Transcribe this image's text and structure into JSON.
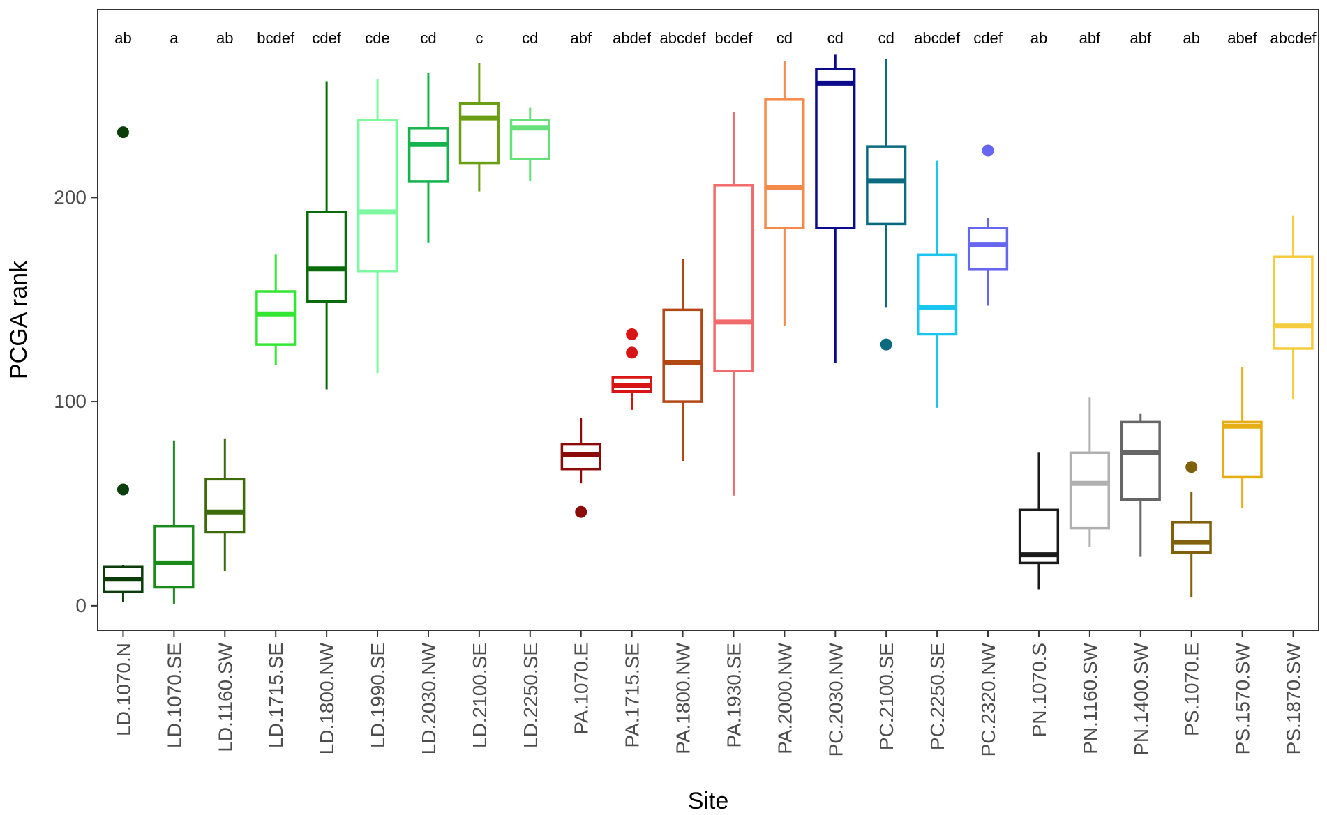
{
  "chart_data": {
    "type": "boxplot",
    "title": "",
    "xlabel": "Site",
    "ylabel": "PCGA rank",
    "ylim": [
      -12,
      292
    ],
    "yticks": [
      0,
      100,
      200
    ],
    "grid": false,
    "categories": [
      "LD.1070.N",
      "LD.1070.SE",
      "LD.1160.SW",
      "LD.1715.SE",
      "LD.1800.NW",
      "LD.1990.SE",
      "LD.2030.NW",
      "LD.2100.SE",
      "LD.2250.SE",
      "PA.1070.E",
      "PA.1715.SE",
      "PA.1800.NW",
      "PA.1930.SE",
      "PA.2000.NW",
      "PC.2030.NW",
      "PC.2100.SE",
      "PC.2250.SE",
      "PC.2320.NW",
      "PN.1070.S",
      "PN.1160.SW",
      "PN.1400.SW",
      "PS.1070.E",
      "PS.1570.SW",
      "PS.1870.SW"
    ],
    "series": [
      {
        "name": "LD.1070.N",
        "color": "#0b3d0b",
        "letters": "ab",
        "whisker_low": 2,
        "q1": 7,
        "median": 13,
        "q3": 19,
        "whisker_high": 20,
        "outliers": [
          57,
          232
        ]
      },
      {
        "name": "LD.1070.SE",
        "color": "#1a8a1a",
        "letters": "a",
        "whisker_low": 1,
        "q1": 9,
        "median": 21,
        "q3": 39,
        "whisker_high": 81,
        "outliers": []
      },
      {
        "name": "LD.1160.SW",
        "color": "#3d6b0a",
        "letters": "ab",
        "whisker_low": 17,
        "q1": 36,
        "median": 46,
        "q3": 62,
        "whisker_high": 82,
        "outliers": []
      },
      {
        "name": "LD.1715.SE",
        "color": "#33e633",
        "letters": "bcdef",
        "whisker_low": 118,
        "q1": 128,
        "median": 143,
        "q3": 154,
        "whisker_high": 172,
        "outliers": []
      },
      {
        "name": "LD.1800.NW",
        "color": "#0a6b0a",
        "letters": "cdef",
        "whisker_low": 106,
        "q1": 149,
        "median": 165,
        "q3": 193,
        "whisker_high": 257,
        "outliers": []
      },
      {
        "name": "LD.1990.SE",
        "color": "#7dfa9f",
        "letters": "cde",
        "whisker_low": 114,
        "q1": 164,
        "median": 193,
        "q3": 238,
        "whisker_high": 258,
        "outliers": []
      },
      {
        "name": "LD.2030.NW",
        "color": "#14b34d",
        "letters": "cd",
        "whisker_low": 178,
        "q1": 208,
        "median": 226,
        "q3": 234,
        "whisker_high": 261,
        "outliers": []
      },
      {
        "name": "LD.2100.SE",
        "color": "#6b9e14",
        "letters": "c",
        "whisker_low": 203,
        "q1": 217,
        "median": 239,
        "q3": 246,
        "whisker_high": 266,
        "outliers": []
      },
      {
        "name": "LD.2250.SE",
        "color": "#66e07a",
        "letters": "cd",
        "whisker_low": 208,
        "q1": 219,
        "median": 234,
        "q3": 238,
        "whisker_high": 244,
        "outliers": []
      },
      {
        "name": "PA.1070.E",
        "color": "#8b0a0a",
        "letters": "abf",
        "whisker_low": 60,
        "q1": 67,
        "median": 74,
        "q3": 79,
        "whisker_high": 92,
        "outliers": [
          46
        ]
      },
      {
        "name": "PA.1715.SE",
        "color": "#d91414",
        "letters": "abdef",
        "whisker_low": 96,
        "q1": 105,
        "median": 108,
        "q3": 112,
        "whisker_high": 112,
        "outliers": [
          124,
          133
        ]
      },
      {
        "name": "PA.1800.NW",
        "color": "#b34714",
        "letters": "abcdef",
        "whisker_low": 71,
        "q1": 100,
        "median": 119,
        "q3": 145,
        "whisker_high": 170,
        "outliers": []
      },
      {
        "name": "PA.1930.SE",
        "color": "#f06b6b",
        "letters": "bcdef",
        "whisker_low": 54,
        "q1": 115,
        "median": 139,
        "q3": 206,
        "whisker_high": 242,
        "outliers": []
      },
      {
        "name": "PA.2000.NW",
        "color": "#f5894a",
        "letters": "cd",
        "whisker_low": 137,
        "q1": 185,
        "median": 205,
        "q3": 248,
        "whisker_high": 267,
        "outliers": []
      },
      {
        "name": "PC.2030.NW",
        "color": "#0a0a8a",
        "letters": "cd",
        "whisker_low": 119,
        "q1": 185,
        "median": 256,
        "q3": 263,
        "whisker_high": 270,
        "outliers": []
      },
      {
        "name": "PC.2100.SE",
        "color": "#0a6b80",
        "letters": "cd",
        "whisker_low": 146,
        "q1": 187,
        "median": 208,
        "q3": 225,
        "whisker_high": 268,
        "outliers": [
          128
        ]
      },
      {
        "name": "PC.2250.SE",
        "color": "#1ac6f0",
        "letters": "abcdef",
        "whisker_low": 97,
        "q1": 133,
        "median": 146,
        "q3": 172,
        "whisker_high": 218,
        "outliers": []
      },
      {
        "name": "PC.2320.NW",
        "color": "#6666f0",
        "letters": "cdef",
        "whisker_low": 147,
        "q1": 165,
        "median": 177,
        "q3": 185,
        "whisker_high": 190,
        "outliers": [
          223
        ]
      },
      {
        "name": "PN.1070.S",
        "color": "#1a1a1a",
        "letters": "ab",
        "whisker_low": 8,
        "q1": 21,
        "median": 25,
        "q3": 47,
        "whisker_high": 75,
        "outliers": []
      },
      {
        "name": "PN.1160.SW",
        "color": "#b0b0b0",
        "letters": "abf",
        "whisker_low": 29,
        "q1": 38,
        "median": 60,
        "q3": 75,
        "whisker_high": 102,
        "outliers": []
      },
      {
        "name": "PN.1400.SW",
        "color": "#666666",
        "letters": "abf",
        "whisker_low": 24,
        "q1": 52,
        "median": 75,
        "q3": 90,
        "whisker_high": 94,
        "outliers": []
      },
      {
        "name": "PS.1070.E",
        "color": "#80600a",
        "letters": "ab",
        "whisker_low": 4,
        "q1": 26,
        "median": 31,
        "q3": 41,
        "whisker_high": 56,
        "outliers": [
          68
        ]
      },
      {
        "name": "PS.1570.SW",
        "color": "#e6ad14",
        "letters": "abef",
        "whisker_low": 48,
        "q1": 63,
        "median": 88,
        "q3": 90,
        "whisker_high": 117,
        "outliers": []
      },
      {
        "name": "PS.1870.SW",
        "color": "#f5cc3d",
        "letters": "abcdef",
        "whisker_low": 101,
        "q1": 126,
        "median": 137,
        "q3": 171,
        "whisker_high": 191,
        "outliers": []
      }
    ]
  }
}
